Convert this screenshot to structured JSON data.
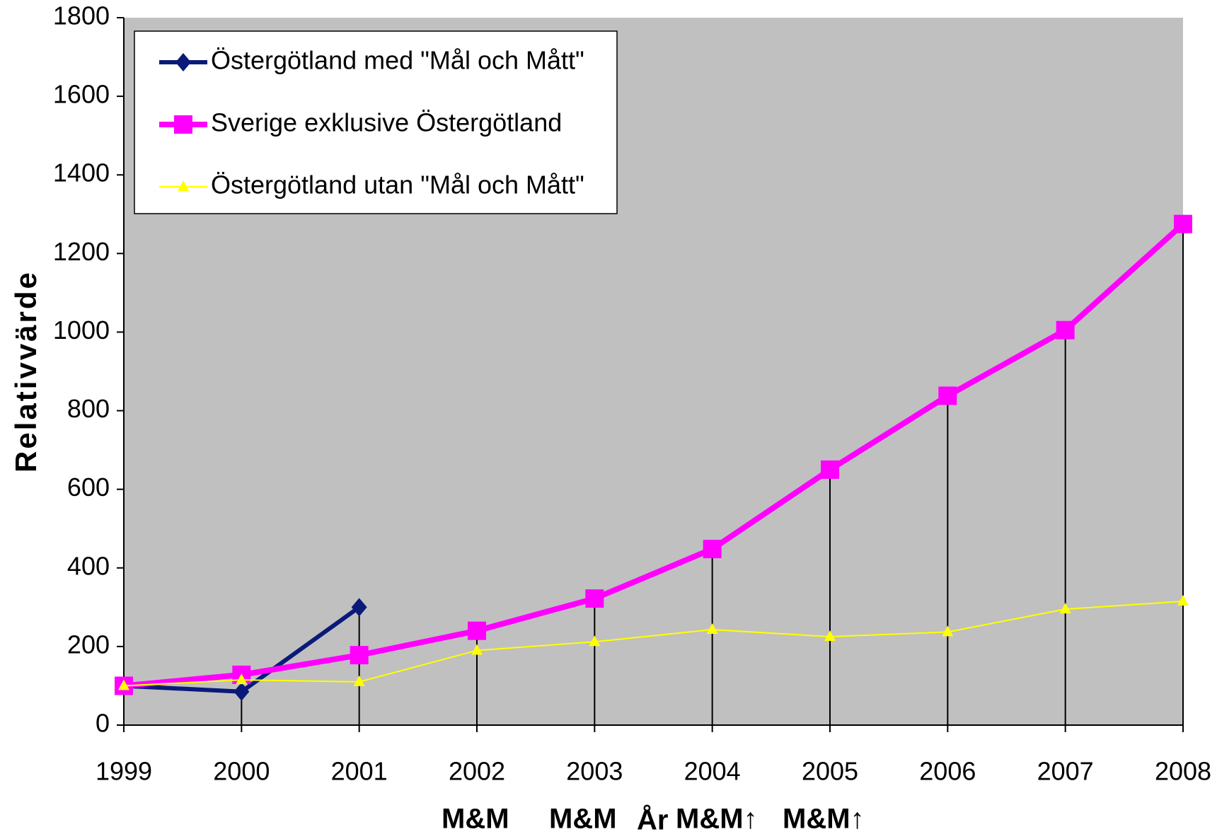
{
  "chart_data": {
    "type": "line",
    "ylabel": "Relativvärde",
    "xlabel": "År",
    "annotations": [
      "M&M",
      "M&M",
      "M&M↑",
      "M&M↑"
    ],
    "annotation_color": "#1a8a1a",
    "categories": [
      "1999",
      "2000",
      "2001",
      "2002",
      "2003",
      "2004",
      "2005",
      "2006",
      "2007",
      "2008"
    ],
    "series": [
      {
        "name": "Östergötland med \"Mål och Mått\"",
        "color": "#0a1a78",
        "marker": "diamond",
        "values": [
          100,
          85,
          300,
          null,
          null,
          null,
          null,
          null,
          null,
          null
        ]
      },
      {
        "name": "Sverige exklusive Östergötland",
        "color": "#ff00ff",
        "marker": "square",
        "values": [
          100,
          128,
          178,
          240,
          322,
          448,
          650,
          838,
          1005,
          1275
        ]
      },
      {
        "name": "Östergötland utan \"Mål och Mått\"",
        "color": "#ffff00",
        "marker": "triangle",
        "values": [
          100,
          115,
          110,
          190,
          212,
          243,
          225,
          237,
          295,
          315
        ]
      }
    ],
    "ylim": [
      0,
      1800
    ],
    "yticks": [
      0,
      200,
      400,
      600,
      800,
      1000,
      1200,
      1400,
      1600,
      1800
    ],
    "drop_lines": true,
    "plot_background": "#c0c0c0",
    "legend": "upper left"
  }
}
